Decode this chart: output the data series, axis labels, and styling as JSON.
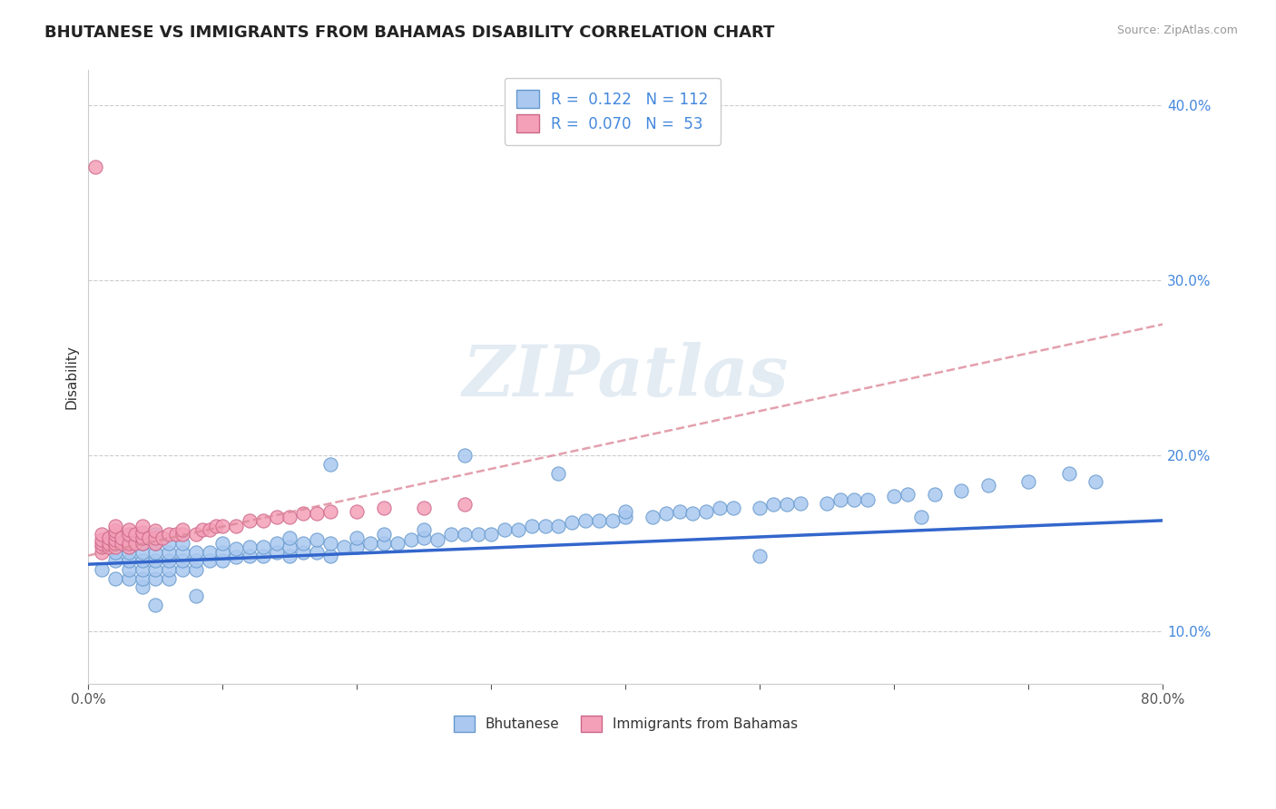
{
  "title": "BHUTANESE VS IMMIGRANTS FROM BAHAMAS DISABILITY CORRELATION CHART",
  "source": "Source: ZipAtlas.com",
  "ylabel": "Disability",
  "watermark": "ZIPatlas",
  "xlim": [
    0.0,
    0.8
  ],
  "ylim": [
    0.07,
    0.42
  ],
  "xticks": [
    0.0,
    0.1,
    0.2,
    0.3,
    0.4,
    0.5,
    0.6,
    0.7,
    0.8
  ],
  "yticks": [
    0.1,
    0.2,
    0.3,
    0.4
  ],
  "ytick_labels": [
    "10.0%",
    "20.0%",
    "30.0%",
    "40.0%"
  ],
  "xtick_labels": [
    "0.0%",
    "",
    "",
    "",
    "",
    "",
    "",
    "",
    "80.0%"
  ],
  "blue_color": "#aac8f0",
  "pink_color": "#f4a0b8",
  "blue_edge_color": "#6699cc",
  "pink_edge_color": "#cc6688",
  "blue_line_color": "#3366cc",
  "pink_line_color": "#dd8899",
  "R_blue": 0.122,
  "N_blue": 112,
  "R_pink": 0.07,
  "N_pink": 53,
  "legend_label_blue": "Bhutanese",
  "legend_label_pink": "Immigrants from Bahamas",
  "blue_scatter_x": [
    0.01,
    0.02,
    0.02,
    0.02,
    0.03,
    0.03,
    0.03,
    0.03,
    0.03,
    0.04,
    0.04,
    0.04,
    0.04,
    0.04,
    0.04,
    0.04,
    0.05,
    0.05,
    0.05,
    0.05,
    0.05,
    0.05,
    0.06,
    0.06,
    0.06,
    0.06,
    0.06,
    0.07,
    0.07,
    0.07,
    0.07,
    0.08,
    0.08,
    0.08,
    0.09,
    0.09,
    0.1,
    0.1,
    0.1,
    0.11,
    0.11,
    0.12,
    0.12,
    0.13,
    0.13,
    0.14,
    0.14,
    0.15,
    0.15,
    0.15,
    0.16,
    0.16,
    0.17,
    0.17,
    0.18,
    0.18,
    0.19,
    0.2,
    0.2,
    0.21,
    0.22,
    0.22,
    0.23,
    0.24,
    0.25,
    0.25,
    0.26,
    0.27,
    0.28,
    0.29,
    0.3,
    0.31,
    0.32,
    0.33,
    0.34,
    0.35,
    0.36,
    0.37,
    0.38,
    0.39,
    0.4,
    0.4,
    0.42,
    0.43,
    0.44,
    0.45,
    0.46,
    0.47,
    0.48,
    0.5,
    0.51,
    0.52,
    0.53,
    0.55,
    0.56,
    0.57,
    0.58,
    0.6,
    0.61,
    0.63,
    0.65,
    0.67,
    0.7,
    0.73,
    0.75,
    0.62,
    0.5,
    0.35,
    0.28,
    0.18,
    0.08,
    0.05
  ],
  "blue_scatter_y": [
    0.135,
    0.13,
    0.14,
    0.145,
    0.13,
    0.135,
    0.14,
    0.145,
    0.15,
    0.125,
    0.13,
    0.135,
    0.14,
    0.145,
    0.15,
    0.155,
    0.13,
    0.135,
    0.14,
    0.145,
    0.15,
    0.155,
    0.13,
    0.135,
    0.14,
    0.145,
    0.15,
    0.135,
    0.14,
    0.145,
    0.15,
    0.135,
    0.14,
    0.145,
    0.14,
    0.145,
    0.14,
    0.145,
    0.15,
    0.142,
    0.147,
    0.143,
    0.148,
    0.143,
    0.148,
    0.145,
    0.15,
    0.143,
    0.148,
    0.153,
    0.145,
    0.15,
    0.145,
    0.152,
    0.143,
    0.15,
    0.148,
    0.148,
    0.153,
    0.15,
    0.15,
    0.155,
    0.15,
    0.152,
    0.153,
    0.158,
    0.152,
    0.155,
    0.155,
    0.155,
    0.155,
    0.158,
    0.158,
    0.16,
    0.16,
    0.16,
    0.162,
    0.163,
    0.163,
    0.163,
    0.165,
    0.168,
    0.165,
    0.167,
    0.168,
    0.167,
    0.168,
    0.17,
    0.17,
    0.17,
    0.172,
    0.172,
    0.173,
    0.173,
    0.175,
    0.175,
    0.175,
    0.177,
    0.178,
    0.178,
    0.18,
    0.183,
    0.185,
    0.19,
    0.185,
    0.165,
    0.143,
    0.19,
    0.2,
    0.195,
    0.12,
    0.115
  ],
  "pink_scatter_x": [
    0.005,
    0.01,
    0.01,
    0.01,
    0.01,
    0.01,
    0.015,
    0.015,
    0.015,
    0.02,
    0.02,
    0.02,
    0.02,
    0.02,
    0.02,
    0.025,
    0.025,
    0.03,
    0.03,
    0.03,
    0.03,
    0.035,
    0.035,
    0.04,
    0.04,
    0.04,
    0.04,
    0.045,
    0.05,
    0.05,
    0.05,
    0.055,
    0.06,
    0.065,
    0.07,
    0.07,
    0.08,
    0.085,
    0.09,
    0.095,
    0.1,
    0.11,
    0.12,
    0.13,
    0.14,
    0.15,
    0.16,
    0.17,
    0.18,
    0.2,
    0.22,
    0.25,
    0.28
  ],
  "pink_scatter_y": [
    0.365,
    0.145,
    0.148,
    0.15,
    0.152,
    0.155,
    0.148,
    0.15,
    0.153,
    0.148,
    0.15,
    0.152,
    0.155,
    0.157,
    0.16,
    0.15,
    0.153,
    0.148,
    0.15,
    0.155,
    0.158,
    0.15,
    0.155,
    0.15,
    0.153,
    0.156,
    0.16,
    0.153,
    0.15,
    0.153,
    0.157,
    0.153,
    0.155,
    0.155,
    0.155,
    0.158,
    0.155,
    0.158,
    0.158,
    0.16,
    0.16,
    0.16,
    0.163,
    0.163,
    0.165,
    0.165,
    0.167,
    0.167,
    0.168,
    0.168,
    0.17,
    0.17,
    0.172
  ],
  "pink_trend_x": [
    0.0,
    0.8
  ],
  "pink_trend_y": [
    0.143,
    0.275
  ],
  "blue_trend_x": [
    0.0,
    0.8
  ],
  "blue_trend_y": [
    0.138,
    0.163
  ]
}
